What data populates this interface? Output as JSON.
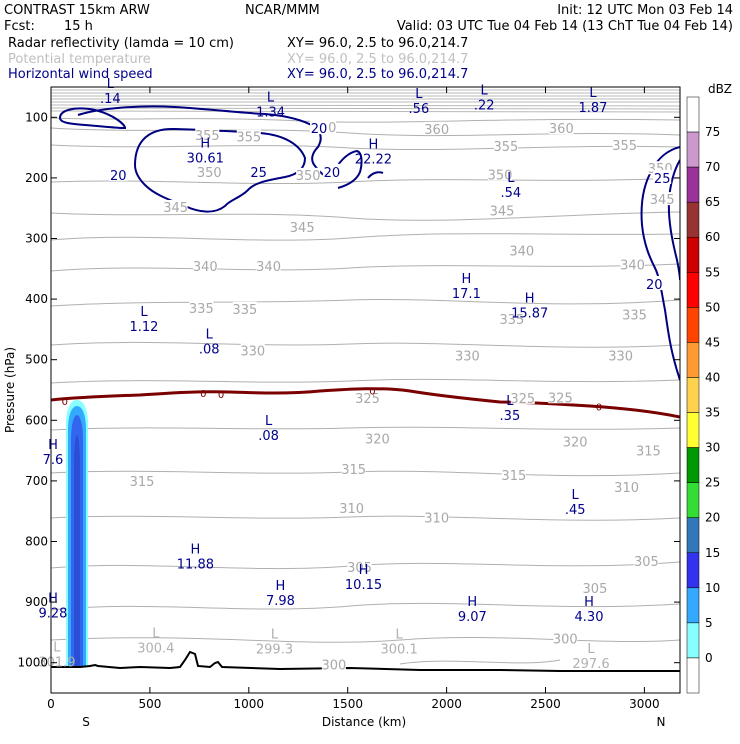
{
  "header": {
    "model": "CONTRAST 15km ARW",
    "org": "NCAR/MMM",
    "init": "Init: 12 UTC Mon 03 Feb 14",
    "fcst_label": "Fcst:",
    "fcst_value": "15 h",
    "valid": "Valid: 03 UTC Tue 04 Feb 14 (13 ChT Tue 04 Feb 14)",
    "fields": [
      {
        "name": "Radar reflectivity (lamda = 10 cm)",
        "xy": "XY=  96.0,  2.5 to  96.0,214.7",
        "color": "#000000"
      },
      {
        "name": "Potential temperature",
        "xy": "XY=  96.0,  2.5 to  96.0,214.7",
        "color": "#c0c0c0"
      },
      {
        "name": "Horizontal wind speed",
        "xy": "XY=  96.0,  2.5 to  96.0,214.7",
        "color": "#00008b"
      }
    ]
  },
  "chart_data": {
    "type": "cross-section",
    "xlabel": "Distance (km)",
    "ylabel": "Pressure (hPa)",
    "xlim": [
      0,
      3180
    ],
    "ylim": [
      1050,
      50
    ],
    "xticks": [
      0,
      500,
      1000,
      1500,
      2000,
      2500,
      3000
    ],
    "yticks": [
      100,
      200,
      300,
      400,
      500,
      600,
      700,
      800,
      900,
      1000
    ],
    "endpoints": {
      "left": "S",
      "right": "N"
    },
    "colorbar": {
      "unit": "dBZ",
      "levels": [
        "75",
        "70",
        "65",
        "60",
        "55",
        "50",
        "45",
        "40",
        "35",
        "30",
        "25",
        "20",
        "15",
        "10",
        "5",
        "0"
      ],
      "colors": [
        "#ffffff",
        "#cc99cc",
        "#993399",
        "#993333",
        "#cc0000",
        "#ff0000",
        "#ff4400",
        "#ff9933",
        "#ffd24d",
        "#ffff33",
        "#009900",
        "#33dd33",
        "#3377bb",
        "#3333ee",
        "#33aaff",
        "#88ffff",
        "#ffffff"
      ]
    },
    "theta_labels": [
      {
        "x": 460,
        "p": 700,
        "v": "315"
      },
      {
        "x": 1530,
        "p": 680,
        "v": "315"
      },
      {
        "x": 2340,
        "p": 690,
        "v": "315"
      },
      {
        "x": 3020,
        "p": 650,
        "v": "315"
      },
      {
        "x": 2910,
        "p": 710,
        "v": "310"
      },
      {
        "x": 1950,
        "p": 760,
        "v": "310"
      },
      {
        "x": 1520,
        "p": 745,
        "v": "310"
      },
      {
        "x": 1560,
        "p": 842,
        "v": "305"
      },
      {
        "x": 2750,
        "p": 877,
        "v": "305"
      },
      {
        "x": 3010,
        "p": 832,
        "v": "305"
      },
      {
        "x": 2650,
        "p": 635,
        "v": "320"
      },
      {
        "x": 1650,
        "p": 630,
        "v": "320"
      },
      {
        "x": 2575,
        "p": 562,
        "v": "325"
      },
      {
        "x": 2385,
        "p": 563,
        "v": "325"
      },
      {
        "x": 1600,
        "p": 563,
        "v": "325"
      },
      {
        "x": 1020,
        "p": 485,
        "v": "330"
      },
      {
        "x": 2105,
        "p": 493,
        "v": "330"
      },
      {
        "x": 2880,
        "p": 493,
        "v": "330"
      },
      {
        "x": 760,
        "p": 415,
        "v": "335"
      },
      {
        "x": 980,
        "p": 416,
        "v": "335"
      },
      {
        "x": 2330,
        "p": 433,
        "v": "335"
      },
      {
        "x": 2950,
        "p": 425,
        "v": "335"
      },
      {
        "x": 780,
        "p": 345,
        "v": "340"
      },
      {
        "x": 1100,
        "p": 345,
        "v": "340"
      },
      {
        "x": 2380,
        "p": 320,
        "v": "340"
      },
      {
        "x": 2940,
        "p": 343,
        "v": "340"
      },
      {
        "x": 630,
        "p": 248,
        "v": "345"
      },
      {
        "x": 1270,
        "p": 281,
        "v": "345"
      },
      {
        "x": 2280,
        "p": 254,
        "v": "345"
      },
      {
        "x": 3090,
        "p": 235,
        "v": "345"
      },
      {
        "x": 800,
        "p": 190,
        "v": "350"
      },
      {
        "x": 1300,
        "p": 195,
        "v": "350"
      },
      {
        "x": 2270,
        "p": 194,
        "v": "350"
      },
      {
        "x": 3080,
        "p": 184,
        "v": "350"
      },
      {
        "x": 790,
        "p": 129,
        "v": "355"
      },
      {
        "x": 1000,
        "p": 132,
        "v": "355"
      },
      {
        "x": 2300,
        "p": 147,
        "v": "355"
      },
      {
        "x": 2900,
        "p": 146,
        "v": "355"
      },
      {
        "x": 1950,
        "p": 119,
        "v": "360"
      },
      {
        "x": 2580,
        "p": 118,
        "v": "360"
      },
      {
        "x": 1380,
        "p": 116,
        "v": "360"
      },
      {
        "x": 1430,
        "p": 1003,
        "v": "300"
      },
      {
        "x": 2600,
        "p": 960,
        "v": "300"
      }
    ],
    "hl_markers": [
      {
        "x": 300,
        "p": 60,
        "t": "L",
        "v": ".14",
        "gray": false
      },
      {
        "x": 1110,
        "p": 82,
        "t": "L",
        "v": "1.34",
        "gray": false
      },
      {
        "x": 1860,
        "p": 76,
        "t": "L",
        "v": ".56",
        "gray": false
      },
      {
        "x": 2190,
        "p": 71,
        "t": "L",
        "v": ".22",
        "gray": false
      },
      {
        "x": 2740,
        "p": 75,
        "t": "L",
        "v": "1.87",
        "gray": false
      },
      {
        "x": 780,
        "p": 158,
        "t": "H",
        "v": "30.61",
        "gray": false
      },
      {
        "x": 1630,
        "p": 160,
        "t": "H",
        "v": "22.22",
        "gray": false
      },
      {
        "x": 2325,
        "p": 215,
        "t": "L",
        "v": ".54",
        "gray": false
      },
      {
        "x": 2100,
        "p": 382,
        "t": "H",
        "v": "17.1",
        "gray": false
      },
      {
        "x": 2420,
        "p": 414,
        "t": "H",
        "v": "15.87",
        "gray": false
      },
      {
        "x": 470,
        "p": 436,
        "t": "L",
        "v": "1.12",
        "gray": false
      },
      {
        "x": 800,
        "p": 473,
        "t": "L",
        "v": ".08",
        "gray": false
      },
      {
        "x": 2320,
        "p": 583,
        "t": "L",
        "v": ".35",
        "gray": false
      },
      {
        "x": 1100,
        "p": 616,
        "t": "L",
        "v": ".08",
        "gray": false
      },
      {
        "x": 10,
        "p": 656,
        "t": "H",
        "v": "7.6",
        "gray": false
      },
      {
        "x": 2650,
        "p": 738,
        "t": "L",
        "v": ".45",
        "gray": false
      },
      {
        "x": 730,
        "p": 828,
        "t": "H",
        "v": "11.88",
        "gray": false
      },
      {
        "x": 1580,
        "p": 862,
        "t": "H",
        "v": "10.15",
        "gray": false
      },
      {
        "x": 1160,
        "p": 888,
        "t": "H",
        "v": "7.98",
        "gray": false
      },
      {
        "x": 10,
        "p": 909,
        "t": "H",
        "v": "9.28",
        "gray": false
      },
      {
        "x": 2130,
        "p": 915,
        "t": "H",
        "v": "9.07",
        "gray": false
      },
      {
        "x": 2720,
        "p": 915,
        "t": "H",
        "v": "4.30",
        "gray": false
      },
      {
        "x": 30,
        "p": 990,
        "t": "L",
        "v": "301.9",
        "gray": true
      },
      {
        "x": 530,
        "p": 967,
        "t": "L",
        "v": "300.4",
        "gray": true
      },
      {
        "x": 1130,
        "p": 968,
        "t": "L",
        "v": "299.3",
        "gray": true
      },
      {
        "x": 1760,
        "p": 968,
        "t": "L",
        "v": "300.1",
        "gray": true
      },
      {
        "x": 2730,
        "p": 992,
        "t": "L",
        "v": "297.6",
        "gray": true
      }
    ],
    "wind_labels": [
      {
        "x": 1355,
        "p": 118,
        "v": "20"
      },
      {
        "x": 340,
        "p": 195,
        "v": "20"
      },
      {
        "x": 1050,
        "p": 190,
        "v": "25"
      },
      {
        "x": 1420,
        "p": 190,
        "v": "20"
      },
      {
        "x": 3090,
        "p": 200,
        "v": "25"
      },
      {
        "x": 3050,
        "p": 375,
        "v": "20"
      }
    ],
    "zero_labels": [
      {
        "x": 70,
        "p": 568,
        "v": "0"
      },
      {
        "x": 770,
        "p": 555,
        "v": "0"
      },
      {
        "x": 860,
        "p": 557,
        "v": "0"
      },
      {
        "x": 1625,
        "p": 551,
        "v": "0"
      },
      {
        "x": 2770,
        "p": 577,
        "v": "0"
      }
    ]
  }
}
